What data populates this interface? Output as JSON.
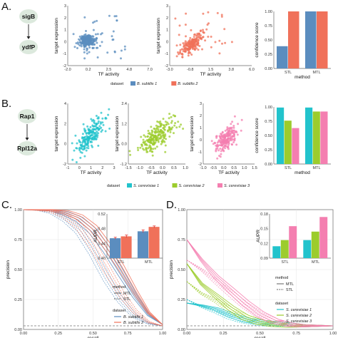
{
  "colors": {
    "bsub1": "#5b8dbf",
    "bsub2": "#f0715a",
    "sc1": "#22c3cc",
    "sc2": "#9ccc2c",
    "sc3": "#f47fb0",
    "node_fill": "#dce9dd",
    "axis": "#666666"
  },
  "panels": {
    "A": {
      "label": "A.",
      "regulator": "sigB",
      "target": "ydfP"
    },
    "B": {
      "label": "B.",
      "regulator": "Rap1",
      "target": "Rpl12a"
    },
    "C": {
      "label": "C."
    },
    "D": {
      "label": "D."
    }
  },
  "legends": {
    "A": {
      "title": "dataset",
      "items": [
        "B. subtilis 1",
        "B. subtilis 2"
      ]
    },
    "B": {
      "title": "dataset",
      "items": [
        "S. cerevisiae 1",
        "S. cerevisiae 2",
        "S. cerevisiae 3"
      ]
    },
    "C": {
      "method_title": "method",
      "method_items": [
        "MTL",
        "STL"
      ],
      "dataset_title": "dataset",
      "dataset_items": [
        "B. subtilis 1",
        "B. subtilis 2"
      ]
    },
    "D": {
      "method_title": "method",
      "method_items": [
        "MTL",
        "STL"
      ],
      "dataset_title": "dataset",
      "dataset_items": [
        "S. cerevisiae 1",
        "S. cerevisiae 2",
        "S. cerevisiae 3"
      ]
    }
  },
  "chart_data": [
    {
      "id": "A1",
      "type": "scatter",
      "xlabel": "TF activity",
      "ylabel": "target expression",
      "xlim": [
        -2.0,
        7.0
      ],
      "ylim": [
        -2,
        3
      ],
      "xticks": [
        "-2.0",
        "0.2",
        "2.5",
        "4.8",
        "7.0"
      ],
      "yticks": [
        "3",
        "2",
        "1",
        "0",
        "-1",
        "-2"
      ],
      "series": [
        {
          "name": "B. subtilis 1"
        }
      ]
    },
    {
      "id": "A2",
      "type": "scatter",
      "xlabel": "TF activity",
      "ylabel": "target expression",
      "xlim": [
        -3.0,
        6.0
      ],
      "ylim": [
        -2,
        3
      ],
      "xticks": [
        "-3.0",
        "-0.8",
        "1.5",
        "3.8",
        "6.0"
      ],
      "yticks": [
        "3",
        "2",
        "1",
        "0",
        "-1",
        "-2"
      ],
      "series": [
        {
          "name": "B. subtilis 2"
        }
      ]
    },
    {
      "id": "A3",
      "type": "bar",
      "xlabel": "method",
      "ylabel": "confidence score",
      "categories": [
        "STL",
        "MTL"
      ],
      "ylim": [
        0,
        1.0
      ],
      "yticks": [
        "1.00",
        "0.75",
        "0.50",
        "0.25",
        "0.00"
      ],
      "series": [
        {
          "name": "B. subtilis 1",
          "values": [
            0.39,
            1.0
          ]
        },
        {
          "name": "B. subtilis 2",
          "values": [
            1.0,
            1.0
          ]
        }
      ]
    },
    {
      "id": "B1",
      "type": "scatter",
      "xlabel": "TF activity",
      "ylabel": "target expression",
      "xlim": [
        -1,
        3
      ],
      "ylim": [
        -3,
        4
      ],
      "xticks": [
        "-1",
        "0",
        "1",
        "2",
        "3"
      ],
      "yticks": [
        "4",
        "2",
        "0",
        "-2"
      ],
      "series": [
        {
          "name": "S. cerevisiae 1"
        }
      ]
    },
    {
      "id": "B2",
      "type": "scatter",
      "xlabel": "TF activity",
      "ylabel": "target expression",
      "xlim": [
        -2,
        1.5
      ],
      "ylim": [
        -2.5,
        3
      ],
      "xticks": [
        "-1.5",
        "-1.0",
        "-0.5",
        "0.0",
        "0.5",
        "1.0"
      ],
      "yticks": [
        "2.4",
        "1.2",
        "0.0",
        "-1.2"
      ],
      "series": [
        {
          "name": "S. cerevisiae 2"
        }
      ]
    },
    {
      "id": "B3",
      "type": "scatter",
      "xlabel": "TF activity",
      "ylabel": "target expression",
      "xlim": [
        -1.6,
        2.4
      ],
      "ylim": [
        -2.5,
        3.5
      ],
      "xticks": [
        "-1.0",
        "-0.5",
        "0.0",
        "0.5",
        "1.0",
        "1.5"
      ],
      "yticks": [
        "3",
        "2",
        "1",
        "0",
        "-1",
        "-2"
      ],
      "series": [
        {
          "name": "S. cerevisiae 3"
        }
      ]
    },
    {
      "id": "B4",
      "type": "bar",
      "xlabel": "method",
      "ylabel": "confidence score",
      "categories": [
        "STL",
        "MTL"
      ],
      "ylim": [
        0,
        1.0
      ],
      "yticks": [
        "1.00",
        "0.75",
        "0.50",
        "0.25",
        "0.00"
      ],
      "series": [
        {
          "name": "S. cerevisiae 1",
          "values": [
            0.99,
            0.99
          ]
        },
        {
          "name": "S. cerevisiae 2",
          "values": [
            0.76,
            0.92
          ]
        },
        {
          "name": "S. cerevisiae 3",
          "values": [
            0.63,
            0.92
          ]
        }
      ]
    },
    {
      "id": "C_pr",
      "type": "line",
      "xlabel": "recall",
      "ylabel": "precision",
      "xlim": [
        0,
        1.0
      ],
      "ylim": [
        0,
        1.0
      ],
      "xticks": [
        "0.00",
        "0.25",
        "0.50",
        "0.75",
        "1.00"
      ],
      "yticks": [
        "1.00",
        "0.75",
        "0.50",
        "0.25",
        "0.00"
      ],
      "baseline": 0.03,
      "series": [
        {
          "name": "B. subtilis 1",
          "method": "MTL",
          "curves": [
            [
              1,
              1,
              1,
              0.97,
              0.92,
              0.82,
              0.66,
              0.47,
              0.28,
              0.12,
              0.04
            ]
          ]
        },
        {
          "name": "B. subtilis 1",
          "method": "STL",
          "curves": [
            [
              1,
              1,
              0.98,
              0.92,
              0.82,
              0.64,
              0.42,
              0.24,
              0.11,
              0.05,
              0.03
            ]
          ]
        },
        {
          "name": "B. subtilis 2",
          "method": "MTL",
          "curves": [
            [
              1,
              1,
              1,
              0.98,
              0.94,
              0.85,
              0.7,
              0.52,
              0.32,
              0.14,
              0.04
            ]
          ]
        },
        {
          "name": "B. subtilis 2",
          "method": "STL",
          "curves": [
            [
              1,
              1,
              0.99,
              0.95,
              0.86,
              0.7,
              0.5,
              0.3,
              0.15,
              0.06,
              0.03
            ]
          ]
        }
      ]
    },
    {
      "id": "C_aupr",
      "type": "bar",
      "xlabel": "",
      "ylabel": "AUPR",
      "categories": [
        "STL",
        "MTL"
      ],
      "ylim": [
        0.38,
        0.52
      ],
      "yticks": [
        "0.52",
        "0.48",
        "0.44",
        "0.40"
      ],
      "series": [
        {
          "name": "B. subtilis 1",
          "values": [
            0.443,
            0.465
          ],
          "errors": [
            0.003,
            0.004
          ]
        },
        {
          "name": "B. subtilis 2",
          "values": [
            0.449,
            0.479
          ],
          "errors": [
            0.004,
            0.003
          ]
        }
      ]
    },
    {
      "id": "D_pr",
      "type": "line",
      "xlabel": "recall",
      "ylabel": "precision",
      "xlim": [
        0,
        1.0
      ],
      "ylim": [
        0,
        1.0
      ],
      "xticks": [
        "0.00",
        "0.25",
        "0.50",
        "0.75",
        "1.00"
      ],
      "yticks": [
        "1.00",
        "0.75",
        "0.50",
        "0.25",
        "0.00"
      ],
      "baseline": 0.03,
      "series": [
        {
          "name": "S. cerevisiae 1",
          "method": "MTL",
          "curves": [
            [
              0.22,
              0.2,
              0.17,
              0.12,
              0.08,
              0.06,
              0.05,
              0.04,
              0.03,
              0.03,
              0.03
            ]
          ]
        },
        {
          "name": "S. cerevisiae 1",
          "method": "STL",
          "curves": [
            [
              0.25,
              0.19,
              0.15,
              0.1,
              0.07,
              0.05,
              0.04,
              0.04,
              0.03,
              0.03,
              0.03
            ]
          ]
        },
        {
          "name": "S. cerevisiae 2",
          "method": "MTL",
          "curves": [
            [
              0.55,
              0.38,
              0.28,
              0.18,
              0.1,
              0.06,
              0.04,
              0.03,
              0.03,
              0.03,
              0.03
            ]
          ]
        },
        {
          "name": "S. cerevisiae 2",
          "method": "STL",
          "curves": [
            [
              0.4,
              0.3,
              0.24,
              0.16,
              0.1,
              0.06,
              0.05,
              0.04,
              0.03,
              0.03,
              0.03
            ]
          ]
        },
        {
          "name": "S. cerevisiae 3",
          "method": "MTL",
          "curves": [
            [
              0.75,
              0.58,
              0.44,
              0.33,
              0.22,
              0.13,
              0.07,
              0.04,
              0.03,
              0.03,
              0.03
            ]
          ]
        },
        {
          "name": "S. cerevisiae 3",
          "method": "STL",
          "curves": [
            [
              0.58,
              0.5,
              0.4,
              0.3,
              0.2,
              0.12,
              0.07,
              0.04,
              0.03,
              0.03,
              0.03
            ]
          ]
        }
      ]
    },
    {
      "id": "D_aupr",
      "type": "bar",
      "xlabel": "",
      "ylabel": "AUPR",
      "categories": [
        "STL",
        "MTL"
      ],
      "ylim": [
        0,
        0.2
      ],
      "yticks": [
        "0.18",
        "0.15",
        "0.12",
        "0.09"
      ],
      "series": [
        {
          "name": "S. cerevisiae 1",
          "values": [
            0.095,
            0.113
          ]
        },
        {
          "name": "S. cerevisiae 2",
          "values": [
            0.113,
            0.138
          ]
        },
        {
          "name": "S. cerevisiae 3",
          "values": [
            0.154,
            0.181
          ]
        }
      ]
    }
  ]
}
